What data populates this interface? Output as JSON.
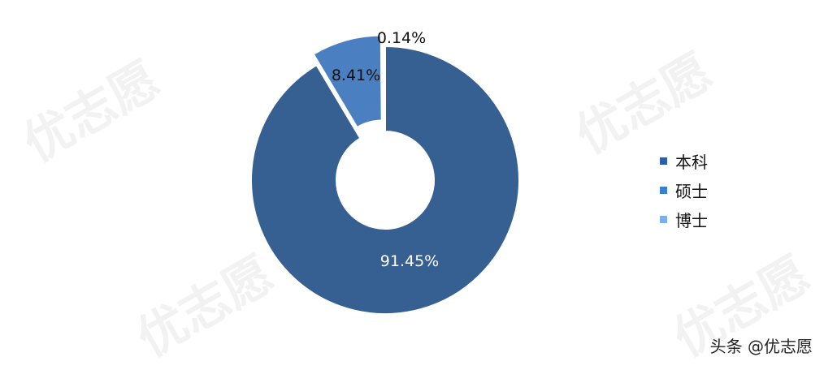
{
  "chart_data": {
    "type": "pie",
    "variant": "donut",
    "categories": [
      "本科",
      "硕士",
      "博士"
    ],
    "values": [
      91.45,
      8.41,
      0.14
    ],
    "labels": [
      "91.45%",
      "8.41%",
      "0.14%"
    ],
    "unit": "%",
    "colors": [
      "#365f92",
      "#4a80c2",
      "#7aaee8"
    ],
    "legend_colors": [
      "#2d5ea8",
      "#3a7fd2",
      "#7db0ea"
    ],
    "exploded": [
      "硕士"
    ],
    "legend_position": "right"
  },
  "watermark": "优志愿",
  "credit": "头条 @优志愿"
}
